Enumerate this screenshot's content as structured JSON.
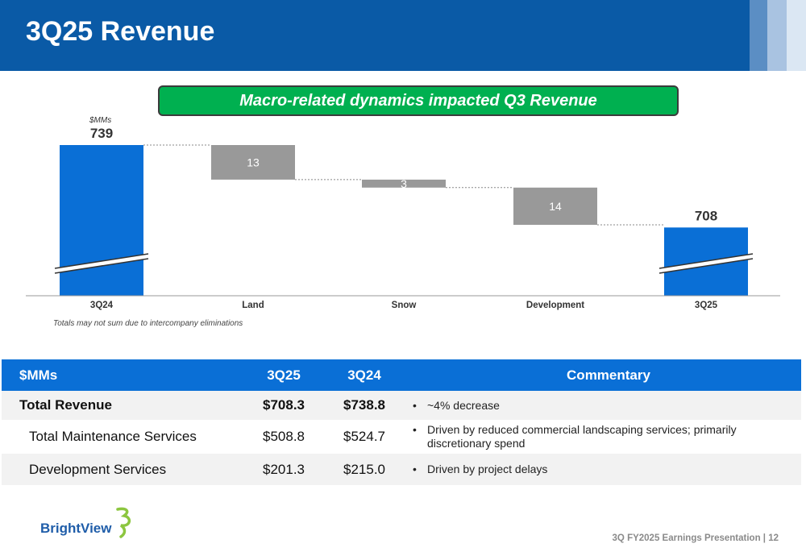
{
  "header": {
    "title": "3Q25 Revenue"
  },
  "banner": {
    "text": "Macro-related dynamics impacted Q3 Revenue"
  },
  "colors": {
    "brand_blue": "#0a5aa6",
    "bar_blue": "#0a6fd6",
    "bar_gray": "#999999",
    "banner_green": "#00b050"
  },
  "chart_data": {
    "type": "bar",
    "subtype": "waterfall",
    "unit_label": "$MMs",
    "categories": [
      "3Q24",
      "Land",
      "Snow",
      "Development",
      "3Q25"
    ],
    "values": [
      739,
      -13,
      -3,
      -14,
      708
    ],
    "bar_kinds": [
      "total",
      "delta",
      "delta",
      "delta",
      "total"
    ],
    "data_labels": [
      "739",
      "13",
      "3",
      "14",
      "708"
    ],
    "axis_break": true,
    "footnote": "Totals may not sum due to intercompany eliminations"
  },
  "table": {
    "headers": [
      "$MMs",
      "3Q25",
      "3Q24",
      "Commentary"
    ],
    "rows": [
      {
        "label": "Total Revenue",
        "q25": "$708.3",
        "q24": "$738.8",
        "bullet": "•",
        "comment": "~4% decrease"
      },
      {
        "label": "Total Maintenance Services",
        "q25": "$508.8",
        "q24": "$524.7",
        "bullet": "•",
        "comment": "Driven by reduced commercial landscaping services; primarily discretionary spend"
      },
      {
        "label": "Development Services",
        "q25": "$201.3",
        "q24": "$215.0",
        "bullet": "•",
        "comment": "Driven by project delays"
      }
    ]
  },
  "logo": {
    "text": "BrightView"
  },
  "footer": {
    "text": "3Q FY2025 Earnings Presentation | 12"
  }
}
